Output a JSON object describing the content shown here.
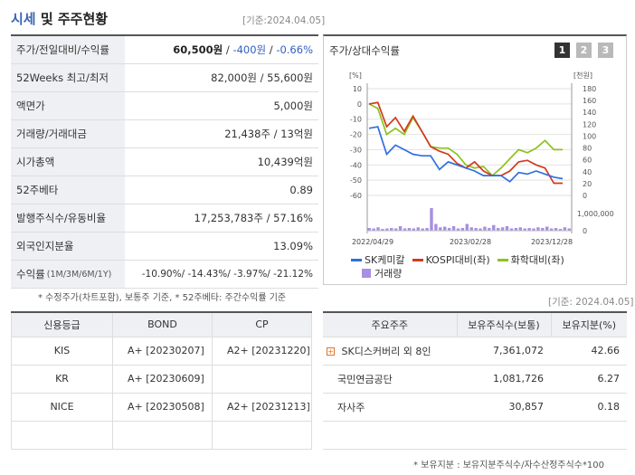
{
  "header": {
    "title_part1": "시세",
    "title_part2": "및 주주현황",
    "basis": "[기준:2024.04.05]"
  },
  "stock_info": {
    "rows": [
      {
        "label": "주가/전일대비/수익률",
        "price": "60,500원",
        "change": "-400원",
        "rate": "-0.66%"
      },
      {
        "label": "52Weeks 최고/최저",
        "value": "82,000원 / 55,600원"
      },
      {
        "label": "액면가",
        "value": "5,000원"
      },
      {
        "label": "거래량/거래대금",
        "value": "21,438주 / 13억원"
      },
      {
        "label": "시가총액",
        "value": "10,439억원"
      },
      {
        "label": "52주베타",
        "value": "0.89"
      },
      {
        "label": "발행주식수/유동비율",
        "value": "17,253,783주 / 57.16%"
      },
      {
        "label": "외국인지분율",
        "value": "13.09%"
      },
      {
        "label": "수익률",
        "sub": "(1M/3M/6M/1Y)",
        "value": "-10.90%/ -14.43%/ -3.97%/ -21.12%"
      }
    ],
    "note": "* 수정주가(차트포함), 보통주 기준, * 52주베타: 주간수익률 기준"
  },
  "chart": {
    "title": "주가/상대수익률",
    "pages": [
      "1",
      "2",
      "3"
    ],
    "left_unit": "[%]",
    "right_unit": "[천원]",
    "volume_label": "1,000,000",
    "volume_zero": "0",
    "legend": {
      "sk": "SK케미칼",
      "kospi": "KOSPI대비(좌)",
      "chem": "화학대비(좌)",
      "vol": "거래량"
    },
    "colors": {
      "sk": "#2f6fe0",
      "kospi": "#d23a1e",
      "chem": "#8ec21f",
      "vol": "#a98ee3"
    }
  },
  "chart_data": {
    "type": "line",
    "x_ticks": [
      "2022/04/29",
      "2023/02/28",
      "2023/12/28"
    ],
    "left_axis": {
      "ylim": [
        -60,
        10
      ],
      "ticks": [
        10,
        0,
        -10,
        -20,
        -30,
        -40,
        -50,
        -60
      ]
    },
    "right_axis": {
      "ylim": [
        0,
        180
      ],
      "ticks": [
        180,
        160,
        140,
        120,
        100,
        80,
        60,
        40,
        20,
        0
      ]
    },
    "series": [
      {
        "name": "SK케미칼",
        "values": [
          -16,
          -15,
          -33,
          -27,
          -30,
          -33,
          -34,
          -34,
          -43,
          -38,
          -40,
          -42,
          -44,
          -47,
          -47,
          -47,
          -51,
          -45,
          -46,
          -44,
          -46,
          -48,
          -49
        ]
      },
      {
        "name": "KOSPI대비(좌)",
        "values": [
          0,
          1,
          -15,
          -9,
          -18,
          -8,
          -18,
          -28,
          -31,
          -33,
          -39,
          -42,
          -38,
          -44,
          -47,
          -47,
          -44,
          -38,
          -37,
          -40,
          -42,
          -52,
          -52
        ]
      },
      {
        "name": "화학대비(좌)",
        "values": [
          0,
          -3,
          -20,
          -16,
          -20,
          -9,
          -18,
          -28,
          -29,
          -29,
          -33,
          -40,
          -42,
          -41,
          -47,
          -42,
          -36,
          -30,
          -32,
          -29,
          -24,
          -30,
          -30
        ]
      }
    ]
  },
  "credit": {
    "headers": [
      "신용등급",
      "BOND",
      "CP"
    ],
    "rows": [
      {
        "agency": "KIS",
        "bond": "A+ [20230207]",
        "cp": "A2+ [20231220]"
      },
      {
        "agency": "KR",
        "bond": "A+ [20230609]",
        "cp": ""
      },
      {
        "agency": "NICE",
        "bond": "A+ [20230508]",
        "cp": "A2+ [20231213]"
      },
      {
        "agency": "",
        "bond": "",
        "cp": ""
      }
    ]
  },
  "holders": {
    "basis": "[기준: 2024.04.05]",
    "headers": [
      "주요주주",
      "보유주식수(보통)",
      "보유지분(%)"
    ],
    "rows": [
      {
        "name": "SK디스커버리 외 8인",
        "shares": "7,361,072",
        "pct": "42.66"
      },
      {
        "name": "국민연금공단",
        "shares": "1,081,726",
        "pct": "6.27"
      },
      {
        "name": "자사주",
        "shares": "30,857",
        "pct": "0.18"
      },
      {
        "name": "",
        "shares": "",
        "pct": ""
      }
    ],
    "note": "* 보유지분 : 보유지분주식수/자수산정주식수*100"
  }
}
